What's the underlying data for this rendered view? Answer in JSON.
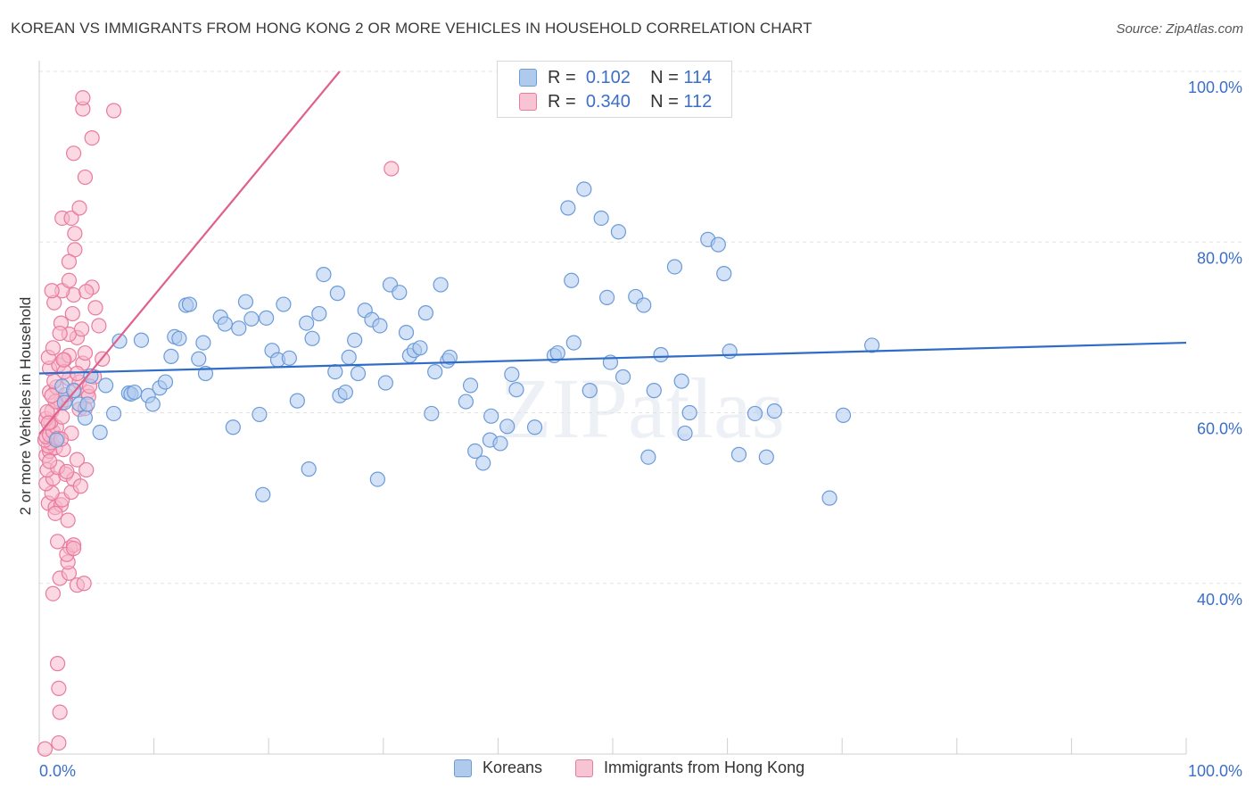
{
  "title": "KOREAN VS IMMIGRANTS FROM HONG KONG 2 OR MORE VEHICLES IN HOUSEHOLD CORRELATION CHART",
  "source": "Source: ZipAtlas.com",
  "watermark": "ZIPatlas",
  "colors": {
    "blue_fill": "#aecbee",
    "blue_stroke": "#6b9bd9",
    "blue_line": "#2f6cc8",
    "pink_fill": "#f7b8cb",
    "pink_stroke": "#e87ba0",
    "pink_line": "#e0608c",
    "axis_text": "#3b6fc9",
    "grid": "#e2e2e2"
  },
  "legend_top": {
    "rows": [
      {
        "r_label": "R =",
        "r_value": "0.102",
        "n_label": "N =",
        "n_value": "114",
        "series": "blue"
      },
      {
        "r_label": "R =",
        "r_value": "0.340",
        "n_label": "N =",
        "n_value": "112",
        "series": "pink"
      }
    ]
  },
  "legend_bottom": [
    {
      "label": "Koreans",
      "series": "blue"
    },
    {
      "label": "Immigrants from Hong Kong",
      "series": "pink"
    }
  ],
  "chart_data": {
    "type": "scatter",
    "title": "KOREAN VS IMMIGRANTS FROM HONG KONG 2 OR MORE VEHICLES IN HOUSEHOLD CORRELATION CHART",
    "xlabel": "",
    "ylabel": "2 or more Vehicles in Household",
    "xlim": [
      0,
      100
    ],
    "ylim": [
      20,
      100
    ],
    "x_tick_labels": [
      "0.0%",
      "100.0%"
    ],
    "y_tick_labels": [
      "40.0%",
      "60.0%",
      "80.0%",
      "100.0%"
    ],
    "y_ticks": [
      40,
      60,
      80,
      100
    ],
    "grid": true,
    "legend_position": "top-center",
    "series": [
      {
        "name": "Koreans",
        "color": "blue",
        "r": 0.102,
        "n": 114,
        "trend": {
          "x": [
            0,
            100
          ],
          "y": [
            64.6,
            68.2
          ]
        },
        "points": [
          [
            1.5,
            56.8
          ],
          [
            2.0,
            63.1
          ],
          [
            2.2,
            61.2
          ],
          [
            3.5,
            61.0
          ],
          [
            4.0,
            59.4
          ],
          [
            4.5,
            64.3
          ],
          [
            5.3,
            57.7
          ],
          [
            5.8,
            63.2
          ],
          [
            6.5,
            59.9
          ],
          [
            7.0,
            68.4
          ],
          [
            7.8,
            62.3
          ],
          [
            8.0,
            62.2
          ],
          [
            8.3,
            62.4
          ],
          [
            8.9,
            68.5
          ],
          [
            9.5,
            62.0
          ],
          [
            9.9,
            61.0
          ],
          [
            10.5,
            62.9
          ],
          [
            11.0,
            63.6
          ],
          [
            11.5,
            66.6
          ],
          [
            11.8,
            68.9
          ],
          [
            12.2,
            68.7
          ],
          [
            12.8,
            72.6
          ],
          [
            13.1,
            72.7
          ],
          [
            13.9,
            66.3
          ],
          [
            14.3,
            68.2
          ],
          [
            14.5,
            64.6
          ],
          [
            15.8,
            71.2
          ],
          [
            16.2,
            70.4
          ],
          [
            16.9,
            58.3
          ],
          [
            17.4,
            69.9
          ],
          [
            18.0,
            73.0
          ],
          [
            18.5,
            71.0
          ],
          [
            19.2,
            59.8
          ],
          [
            19.5,
            50.4
          ],
          [
            19.8,
            71.1
          ],
          [
            20.3,
            67.3
          ],
          [
            20.8,
            66.2
          ],
          [
            21.3,
            72.7
          ],
          [
            21.8,
            66.4
          ],
          [
            22.5,
            61.4
          ],
          [
            23.3,
            70.5
          ],
          [
            23.5,
            53.4
          ],
          [
            23.8,
            68.7
          ],
          [
            24.4,
            71.6
          ],
          [
            24.8,
            76.2
          ],
          [
            25.8,
            64.8
          ],
          [
            26.2,
            62.0
          ],
          [
            26.7,
            62.4
          ],
          [
            27.0,
            66.5
          ],
          [
            27.5,
            68.5
          ],
          [
            27.8,
            64.6
          ],
          [
            28.4,
            72.0
          ],
          [
            29.0,
            70.9
          ],
          [
            29.5,
            52.2
          ],
          [
            29.7,
            70.2
          ],
          [
            30.2,
            63.5
          ],
          [
            30.6,
            75.0
          ],
          [
            31.4,
            74.1
          ],
          [
            32.0,
            69.4
          ],
          [
            32.3,
            66.7
          ],
          [
            32.7,
            67.3
          ],
          [
            33.2,
            67.6
          ],
          [
            33.7,
            71.7
          ],
          [
            34.2,
            59.9
          ],
          [
            34.5,
            64.8
          ],
          [
            35.0,
            75.0
          ],
          [
            35.6,
            66.1
          ],
          [
            35.8,
            66.5
          ],
          [
            37.2,
            61.3
          ],
          [
            37.6,
            63.2
          ],
          [
            38.0,
            55.5
          ],
          [
            38.7,
            54.1
          ],
          [
            39.3,
            56.8
          ],
          [
            39.4,
            59.6
          ],
          [
            40.2,
            56.4
          ],
          [
            40.8,
            58.4
          ],
          [
            41.2,
            64.5
          ],
          [
            41.6,
            62.7
          ],
          [
            43.2,
            58.3
          ],
          [
            44.9,
            66.7
          ],
          [
            46.1,
            84.0
          ],
          [
            46.4,
            75.5
          ],
          [
            46.6,
            68.2
          ],
          [
            47.5,
            86.2
          ],
          [
            48.0,
            62.6
          ],
          [
            49.0,
            82.8
          ],
          [
            49.5,
            73.5
          ],
          [
            49.8,
            65.9
          ],
          [
            50.5,
            81.2
          ],
          [
            50.9,
            64.2
          ],
          [
            52.0,
            73.6
          ],
          [
            52.7,
            72.6
          ],
          [
            53.1,
            54.8
          ],
          [
            53.6,
            62.6
          ],
          [
            54.2,
            66.8
          ],
          [
            55.4,
            77.1
          ],
          [
            56.0,
            63.7
          ],
          [
            56.3,
            57.6
          ],
          [
            56.7,
            60.0
          ],
          [
            58.3,
            80.3
          ],
          [
            59.2,
            79.7
          ],
          [
            59.7,
            76.3
          ],
          [
            60.2,
            67.2
          ],
          [
            61.0,
            55.1
          ],
          [
            62.4,
            59.9
          ],
          [
            63.4,
            54.8
          ],
          [
            64.1,
            60.2
          ],
          [
            68.9,
            50.0
          ],
          [
            70.1,
            59.7
          ],
          [
            72.6,
            67.9
          ],
          [
            4.2,
            61.0
          ],
          [
            3.0,
            62.6
          ],
          [
            26.0,
            74.0
          ],
          [
            45.2,
            67.0
          ]
        ]
      },
      {
        "name": "Immigrants from Hong Kong",
        "color": "pink",
        "r": 0.34,
        "n": 112,
        "trend": {
          "x": [
            0,
            26.2
          ],
          "y": [
            57.5,
            100
          ]
        },
        "points": [
          [
            0.5,
            20.6
          ],
          [
            1.7,
            21.3
          ],
          [
            1.8,
            24.9
          ],
          [
            1.7,
            27.7
          ],
          [
            1.6,
            30.6
          ],
          [
            1.2,
            38.8
          ],
          [
            1.8,
            40.6
          ],
          [
            2.6,
            41.2
          ],
          [
            2.5,
            42.5
          ],
          [
            3.3,
            39.8
          ],
          [
            3.9,
            40.0
          ],
          [
            1.6,
            44.9
          ],
          [
            2.7,
            44.2
          ],
          [
            2.4,
            43.4
          ],
          [
            3.0,
            44.5
          ],
          [
            0.8,
            49.4
          ],
          [
            1.4,
            48.9
          ],
          [
            1.9,
            49.2
          ],
          [
            2.0,
            49.8
          ],
          [
            1.1,
            50.6
          ],
          [
            2.8,
            50.7
          ],
          [
            0.6,
            51.7
          ],
          [
            1.2,
            52.3
          ],
          [
            2.3,
            52.8
          ],
          [
            3.0,
            52.2
          ],
          [
            0.7,
            53.3
          ],
          [
            1.6,
            53.6
          ],
          [
            3.3,
            54.5
          ],
          [
            4.1,
            53.3
          ],
          [
            0.6,
            55.0
          ],
          [
            0.9,
            55.5
          ],
          [
            1.4,
            55.9
          ],
          [
            2.1,
            55.7
          ],
          [
            0.8,
            56.1
          ],
          [
            1.0,
            56.5
          ],
          [
            0.5,
            56.8
          ],
          [
            0.6,
            57.2
          ],
          [
            0.9,
            57.4
          ],
          [
            1.2,
            57.8
          ],
          [
            1.5,
            58.3
          ],
          [
            1.0,
            58.9
          ],
          [
            0.6,
            59.3
          ],
          [
            1.1,
            60.2
          ],
          [
            1.9,
            61.1
          ],
          [
            2.3,
            61.5
          ],
          [
            3.5,
            60.4
          ],
          [
            0.9,
            62.4
          ],
          [
            1.5,
            63.0
          ],
          [
            2.3,
            62.1
          ],
          [
            3.1,
            62.6
          ],
          [
            4.2,
            62.4
          ],
          [
            1.3,
            63.7
          ],
          [
            2.6,
            64.0
          ],
          [
            3.5,
            63.6
          ],
          [
            4.8,
            64.2
          ],
          [
            0.9,
            65.2
          ],
          [
            1.7,
            65.6
          ],
          [
            2.2,
            66.2
          ],
          [
            3.8,
            65.8
          ],
          [
            0.8,
            66.5
          ],
          [
            2.6,
            66.7
          ],
          [
            4.0,
            67.0
          ],
          [
            1.2,
            67.6
          ],
          [
            3.3,
            68.8
          ],
          [
            2.6,
            69.2
          ],
          [
            3.7,
            69.8
          ],
          [
            5.2,
            70.2
          ],
          [
            1.9,
            70.5
          ],
          [
            2.9,
            71.6
          ],
          [
            4.9,
            72.3
          ],
          [
            1.3,
            72.9
          ],
          [
            3.0,
            73.8
          ],
          [
            4.6,
            74.7
          ],
          [
            2.0,
            74.3
          ],
          [
            2.6,
            75.5
          ],
          [
            1.1,
            74.3
          ],
          [
            3.1,
            79.1
          ],
          [
            2.6,
            77.7
          ],
          [
            3.1,
            81.0
          ],
          [
            2.0,
            82.8
          ],
          [
            2.8,
            82.8
          ],
          [
            3.5,
            84.0
          ],
          [
            4.0,
            87.6
          ],
          [
            3.0,
            90.4
          ],
          [
            4.6,
            92.2
          ],
          [
            3.8,
            95.6
          ],
          [
            3.8,
            96.9
          ],
          [
            6.5,
            95.4
          ],
          [
            30.7,
            88.6
          ],
          [
            2.0,
            59.5
          ],
          [
            1.4,
            61.3
          ],
          [
            2.8,
            57.6
          ],
          [
            4.3,
            61.9
          ],
          [
            1.8,
            69.3
          ],
          [
            4.0,
            60.5
          ],
          [
            0.7,
            60.1
          ],
          [
            5.5,
            66.3
          ],
          [
            2.4,
            53.1
          ],
          [
            1.4,
            48.2
          ],
          [
            2.2,
            64.8
          ],
          [
            1.6,
            57.0
          ],
          [
            0.9,
            54.3
          ],
          [
            4.1,
            74.2
          ],
          [
            3.3,
            64.6
          ],
          [
            2.5,
            47.4
          ],
          [
            1.1,
            62.0
          ],
          [
            3.0,
            44.1
          ],
          [
            2.1,
            66.2
          ],
          [
            0.8,
            58.8
          ],
          [
            1.9,
            56.9
          ],
          [
            3.6,
            51.4
          ],
          [
            4.4,
            63.1
          ]
        ]
      }
    ]
  }
}
